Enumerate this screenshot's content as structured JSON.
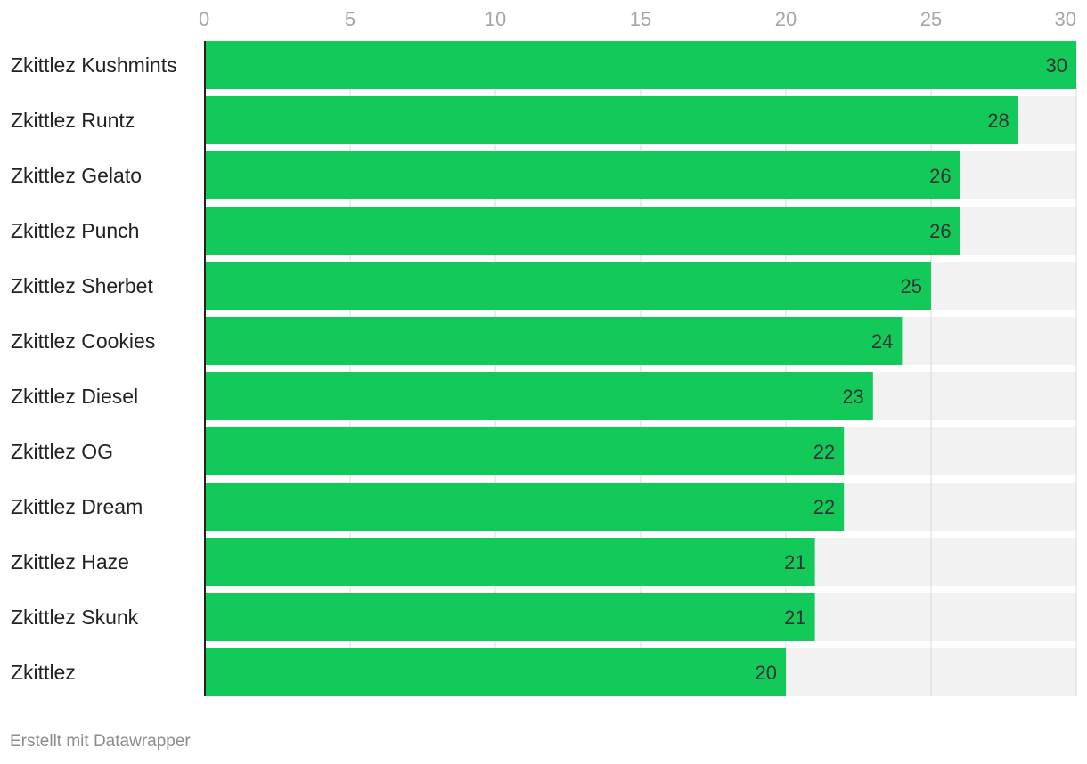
{
  "chart_data": {
    "type": "bar",
    "orientation": "horizontal",
    "categories": [
      "Zkittlez Kushmints",
      "Zkittlez Runtz",
      "Zkittlez Gelato",
      "Zkittlez Punch",
      "Zkittlez Sherbet",
      "Zkittlez Cookies",
      "Zkittlez Diesel",
      "Zkittlez OG",
      "Zkittlez Dream",
      "Zkittlez Haze",
      "Zkittlez Skunk",
      "Zkittlez"
    ],
    "values": [
      30,
      28,
      26,
      26,
      25,
      24,
      23,
      22,
      22,
      21,
      21,
      20
    ],
    "xlim": [
      0,
      30
    ],
    "x_ticks": [
      0,
      5,
      10,
      15,
      20,
      25,
      30
    ],
    "title": "",
    "xlabel": "",
    "ylabel": "",
    "grid": true,
    "legend": "none",
    "data_labels": true
  },
  "colors": {
    "bar": "#12c959",
    "bar_background": "#f2f2f2",
    "gridline": "#d9d9d9",
    "axis_line": "#222222",
    "tick_label": "#a6a6a6",
    "category_label": "#222222",
    "value_label": "#333333"
  },
  "footer": {
    "credit": "Erstellt mit Datawrapper"
  }
}
